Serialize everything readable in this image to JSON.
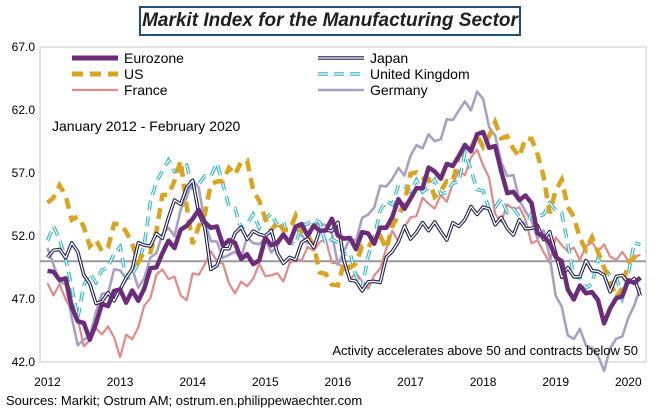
{
  "chart_data": {
    "type": "line",
    "title": "Markit Index for the Manufacturing Sector",
    "subtitle": "January 2012 - February 2020",
    "annotation": "Activity accelerates above 50 and contracts below 50",
    "source": "Sources: Markit; Ostrum AM; ostrum.en.philippewaechter.com",
    "ylim": [
      42,
      67
    ],
    "y_ticks": [
      "42.0",
      "47.0",
      "52.0",
      "57.0",
      "62.0",
      "67.0"
    ],
    "x_ticks": [
      "2012",
      "2013",
      "2014",
      "2015",
      "2016",
      "2017",
      "2018",
      "2019",
      "2020"
    ],
    "x_start": 2012.0,
    "x_end": 2020.25,
    "reference_line": 50,
    "grid": false,
    "legend_placement": "top",
    "series": [
      {
        "name": "Eurozone",
        "color": "#6b2c7a",
        "style": "solid-thick",
        "anchors": [
          [
            2012.0,
            48.8
          ],
          [
            2012.2,
            49.5
          ],
          [
            2012.35,
            45.8
          ],
          [
            2012.55,
            44.2
          ],
          [
            2012.75,
            46.0
          ],
          [
            2013.0,
            47.9
          ],
          [
            2013.25,
            46.7
          ],
          [
            2013.5,
            50.3
          ],
          [
            2013.75,
            51.3
          ],
          [
            2014.0,
            54.0
          ],
          [
            2014.1,
            53.2
          ],
          [
            2014.35,
            52.5
          ],
          [
            2014.6,
            50.7
          ],
          [
            2014.85,
            50.1
          ],
          [
            2015.0,
            51.0
          ],
          [
            2015.25,
            52.0
          ],
          [
            2015.5,
            52.4
          ],
          [
            2015.75,
            52.8
          ],
          [
            2016.0,
            52.3
          ],
          [
            2016.25,
            51.5
          ],
          [
            2016.5,
            52.0
          ],
          [
            2016.75,
            53.5
          ],
          [
            2017.0,
            55.2
          ],
          [
            2017.25,
            56.7
          ],
          [
            2017.5,
            57.5
          ],
          [
            2017.75,
            58.5
          ],
          [
            2017.95,
            60.6
          ],
          [
            2018.15,
            58.6
          ],
          [
            2018.4,
            55.2
          ],
          [
            2018.6,
            54.9
          ],
          [
            2018.85,
            51.8
          ],
          [
            2019.0,
            50.5
          ],
          [
            2019.2,
            47.6
          ],
          [
            2019.45,
            47.6
          ],
          [
            2019.7,
            45.7
          ],
          [
            2019.85,
            46.9
          ],
          [
            2020.0,
            47.9
          ],
          [
            2020.12,
            49.2
          ]
        ]
      },
      {
        "name": "US",
        "color": "#d9a520",
        "style": "dashed-thick",
        "anchors": [
          [
            2012.0,
            54.0
          ],
          [
            2012.15,
            56.0
          ],
          [
            2012.35,
            54.0
          ],
          [
            2012.6,
            51.2
          ],
          [
            2012.85,
            51.5
          ],
          [
            2013.0,
            53.1
          ],
          [
            2013.2,
            51.0
          ],
          [
            2013.4,
            49.9
          ],
          [
            2013.6,
            55.4
          ],
          [
            2013.85,
            57.3
          ],
          [
            2014.0,
            51.3
          ],
          [
            2014.2,
            55.0
          ],
          [
            2014.45,
            57.0
          ],
          [
            2014.7,
            57.9
          ],
          [
            2014.85,
            55.8
          ],
          [
            2015.0,
            53.5
          ],
          [
            2015.2,
            52.1
          ],
          [
            2015.45,
            53.6
          ],
          [
            2015.7,
            50.1
          ],
          [
            2015.95,
            48.0
          ],
          [
            2016.15,
            49.5
          ],
          [
            2016.4,
            51.5
          ],
          [
            2016.65,
            51.5
          ],
          [
            2016.9,
            54.5
          ],
          [
            2017.1,
            57.7
          ],
          [
            2017.4,
            54.8
          ],
          [
            2017.7,
            58.6
          ],
          [
            2017.95,
            59.3
          ],
          [
            2018.15,
            60.8
          ],
          [
            2018.4,
            58.8
          ],
          [
            2018.7,
            59.8
          ],
          [
            2018.9,
            54.3
          ],
          [
            2019.05,
            56.6
          ],
          [
            2019.3,
            52.1
          ],
          [
            2019.55,
            51.2
          ],
          [
            2019.75,
            48.1
          ],
          [
            2019.95,
            47.8
          ],
          [
            2020.05,
            50.9
          ],
          [
            2020.12,
            50.1
          ]
        ]
      },
      {
        "name": "France",
        "color": "#e08a8a",
        "style": "solid",
        "anchors": [
          [
            2012.0,
            48.5
          ],
          [
            2012.2,
            47.3
          ],
          [
            2012.35,
            46.0
          ],
          [
            2012.55,
            43.4
          ],
          [
            2012.75,
            44.5
          ],
          [
            2012.9,
            44.6
          ],
          [
            2013.0,
            42.9
          ],
          [
            2013.2,
            44.0
          ],
          [
            2013.45,
            48.4
          ],
          [
            2013.7,
            49.1
          ],
          [
            2013.9,
            47.0
          ],
          [
            2014.1,
            49.3
          ],
          [
            2014.3,
            51.2
          ],
          [
            2014.5,
            47.8
          ],
          [
            2014.75,
            48.4
          ],
          [
            2015.0,
            49.2
          ],
          [
            2015.3,
            48.8
          ],
          [
            2015.5,
            50.7
          ],
          [
            2015.75,
            51.4
          ],
          [
            2016.0,
            50.0
          ],
          [
            2016.25,
            48.3
          ],
          [
            2016.5,
            48.6
          ],
          [
            2016.75,
            51.8
          ],
          [
            2017.0,
            53.3
          ],
          [
            2017.25,
            54.8
          ],
          [
            2017.5,
            54.9
          ],
          [
            2017.75,
            57.7
          ],
          [
            2017.95,
            58.8
          ],
          [
            2018.2,
            53.5
          ],
          [
            2018.45,
            54.4
          ],
          [
            2018.65,
            52.5
          ],
          [
            2018.9,
            49.7
          ],
          [
            2019.05,
            52.2
          ],
          [
            2019.3,
            50.0
          ],
          [
            2019.55,
            51.9
          ],
          [
            2019.75,
            50.1
          ],
          [
            2019.95,
            50.4
          ],
          [
            2020.05,
            51.1
          ],
          [
            2020.12,
            49.8
          ]
        ]
      },
      {
        "name": "Japan",
        "color": "#1f1f4e",
        "style": "double",
        "anchors": [
          [
            2012.0,
            50.5
          ],
          [
            2012.2,
            51.1
          ],
          [
            2012.4,
            50.7
          ],
          [
            2012.6,
            47.7
          ],
          [
            2012.8,
            46.5
          ],
          [
            2013.0,
            47.7
          ],
          [
            2013.2,
            50.4
          ],
          [
            2013.4,
            51.5
          ],
          [
            2013.6,
            52.5
          ],
          [
            2013.85,
            55.2
          ],
          [
            2014.0,
            56.6
          ],
          [
            2014.25,
            49.4
          ],
          [
            2014.5,
            51.5
          ],
          [
            2014.75,
            52.4
          ],
          [
            2015.0,
            52.2
          ],
          [
            2015.3,
            49.9
          ],
          [
            2015.55,
            51.2
          ],
          [
            2015.8,
            52.6
          ],
          [
            2016.0,
            52.3
          ],
          [
            2016.2,
            48.2
          ],
          [
            2016.45,
            47.7
          ],
          [
            2016.7,
            50.4
          ],
          [
            2016.95,
            52.4
          ],
          [
            2017.2,
            52.7
          ],
          [
            2017.45,
            52.4
          ],
          [
            2017.7,
            52.8
          ],
          [
            2017.95,
            54.8
          ],
          [
            2018.15,
            53.1
          ],
          [
            2018.4,
            52.8
          ],
          [
            2018.65,
            52.5
          ],
          [
            2018.9,
            52.6
          ],
          [
            2019.05,
            48.9
          ],
          [
            2019.3,
            49.3
          ],
          [
            2019.55,
            49.3
          ],
          [
            2019.75,
            48.4
          ],
          [
            2019.95,
            48.4
          ],
          [
            2020.05,
            48.8
          ],
          [
            2020.12,
            47.8
          ]
        ]
      },
      {
        "name": "United Kingdom",
        "color": "#35b6c6",
        "style": "dashed-double",
        "anchors": [
          [
            2012.0,
            52.0
          ],
          [
            2012.2,
            51.8
          ],
          [
            2012.4,
            45.9
          ],
          [
            2012.55,
            48.4
          ],
          [
            2012.75,
            49.1
          ],
          [
            2012.95,
            51.1
          ],
          [
            2013.1,
            48.6
          ],
          [
            2013.25,
            49.8
          ],
          [
            2013.45,
            54.9
          ],
          [
            2013.6,
            58.1
          ],
          [
            2013.85,
            57.1
          ],
          [
            2014.05,
            56.1
          ],
          [
            2014.3,
            57.4
          ],
          [
            2014.5,
            55.0
          ],
          [
            2014.7,
            52.5
          ],
          [
            2014.9,
            53.3
          ],
          [
            2015.1,
            53.7
          ],
          [
            2015.35,
            51.5
          ],
          [
            2015.6,
            53.3
          ],
          [
            2015.85,
            52.1
          ],
          [
            2016.05,
            51.0
          ],
          [
            2016.35,
            48.3
          ],
          [
            2016.55,
            53.3
          ],
          [
            2016.8,
            55.9
          ],
          [
            2017.0,
            55.6
          ],
          [
            2017.25,
            56.3
          ],
          [
            2017.5,
            55.1
          ],
          [
            2017.75,
            58.2
          ],
          [
            2017.95,
            55.3
          ],
          [
            2018.2,
            54.4
          ],
          [
            2018.45,
            53.8
          ],
          [
            2018.7,
            53.1
          ],
          [
            2018.9,
            54.2
          ],
          [
            2019.05,
            55.1
          ],
          [
            2019.2,
            49.4
          ],
          [
            2019.4,
            48.0
          ],
          [
            2019.6,
            49.6
          ],
          [
            2019.8,
            48.9
          ],
          [
            2019.95,
            47.5
          ],
          [
            2020.05,
            50.0
          ],
          [
            2020.12,
            51.7
          ]
        ]
      },
      {
        "name": "Germany",
        "color": "#a8a0c2",
        "style": "solid-medium",
        "anchors": [
          [
            2012.0,
            51.0
          ],
          [
            2012.2,
            48.4
          ],
          [
            2012.45,
            43.0
          ],
          [
            2012.7,
            46.0
          ],
          [
            2012.95,
            49.8
          ],
          [
            2013.1,
            48.8
          ],
          [
            2013.25,
            48.1
          ],
          [
            2013.5,
            51.1
          ],
          [
            2013.75,
            52.7
          ],
          [
            2014.0,
            56.5
          ],
          [
            2014.25,
            52.0
          ],
          [
            2014.5,
            49.9
          ],
          [
            2014.75,
            51.7
          ],
          [
            2015.0,
            51.1
          ],
          [
            2015.3,
            51.9
          ],
          [
            2015.55,
            52.1
          ],
          [
            2015.8,
            53.2
          ],
          [
            2016.0,
            50.5
          ],
          [
            2016.25,
            51.8
          ],
          [
            2016.5,
            55.0
          ],
          [
            2016.75,
            56.4
          ],
          [
            2017.0,
            58.3
          ],
          [
            2017.25,
            59.6
          ],
          [
            2017.5,
            60.6
          ],
          [
            2017.75,
            62.5
          ],
          [
            2017.95,
            63.3
          ],
          [
            2018.1,
            60.6
          ],
          [
            2018.35,
            56.9
          ],
          [
            2018.6,
            53.7
          ],
          [
            2018.85,
            51.8
          ],
          [
            2019.0,
            47.6
          ],
          [
            2019.2,
            44.1
          ],
          [
            2019.45,
            43.5
          ],
          [
            2019.7,
            41.7
          ],
          [
            2019.85,
            43.8
          ],
          [
            2020.0,
            45.3
          ],
          [
            2020.12,
            47.8
          ]
        ]
      }
    ]
  }
}
